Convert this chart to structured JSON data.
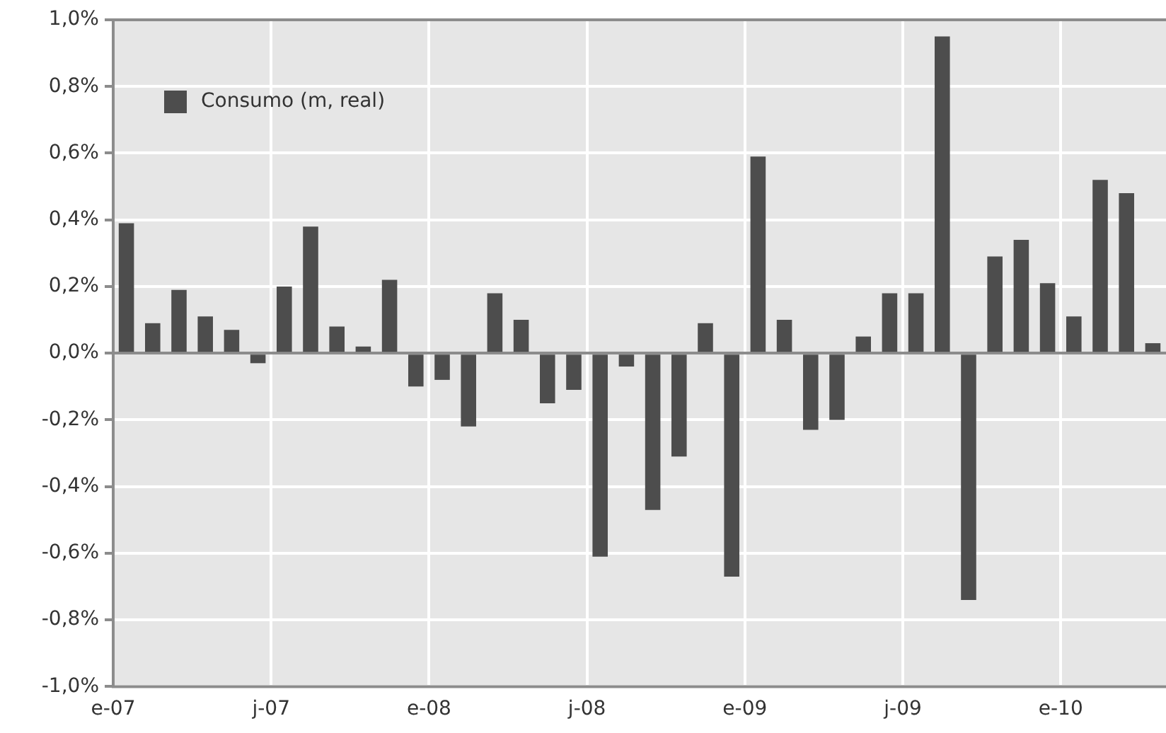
{
  "chart_data": {
    "type": "bar",
    "categories": [
      "e-07",
      null,
      null,
      null,
      null,
      null,
      "j-07",
      null,
      null,
      null,
      null,
      null,
      "e-08",
      null,
      null,
      null,
      null,
      null,
      "j-08",
      null,
      null,
      null,
      null,
      null,
      "e-09",
      null,
      null,
      null,
      null,
      null,
      "j-09",
      null,
      null,
      null,
      null,
      null,
      "e-10",
      null,
      null,
      null
    ],
    "series": [
      {
        "name": "Consumo (m, real)",
        "color": "#4d4d4d",
        "values": [
          0.39,
          0.09,
          0.19,
          0.11,
          0.07,
          -0.03,
          0.2,
          0.38,
          0.08,
          0.02,
          0.22,
          -0.1,
          -0.08,
          -0.22,
          0.18,
          0.1,
          -0.15,
          -0.11,
          -0.61,
          -0.04,
          -0.47,
          -0.31,
          0.09,
          -0.67,
          0.59,
          0.1,
          -0.23,
          -0.2,
          0.05,
          0.18,
          0.18,
          0.95,
          -0.74,
          0.29,
          0.34,
          0.21,
          0.11,
          0.52,
          0.48,
          0.03
        ]
      }
    ],
    "ylim": [
      -1.0,
      1.0
    ],
    "yticks": [
      {
        "value": -1.0,
        "label": "-1,0%"
      },
      {
        "value": -0.8,
        "label": "-0,8%"
      },
      {
        "value": -0.6,
        "label": "-0,6%"
      },
      {
        "value": -0.4,
        "label": "-0,4%"
      },
      {
        "value": -0.2,
        "label": "-0,2%"
      },
      {
        "value": 0,
        "label": "0,0%"
      },
      {
        "value": 0.2,
        "label": "0,2%"
      },
      {
        "value": 0.4,
        "label": "0,4%"
      },
      {
        "value": 0.6,
        "label": "0,6%"
      },
      {
        "value": 0.8,
        "label": "0,8%"
      },
      {
        "value": 1.0,
        "label": "1,0%"
      }
    ],
    "grid": true,
    "legend": "top left"
  }
}
